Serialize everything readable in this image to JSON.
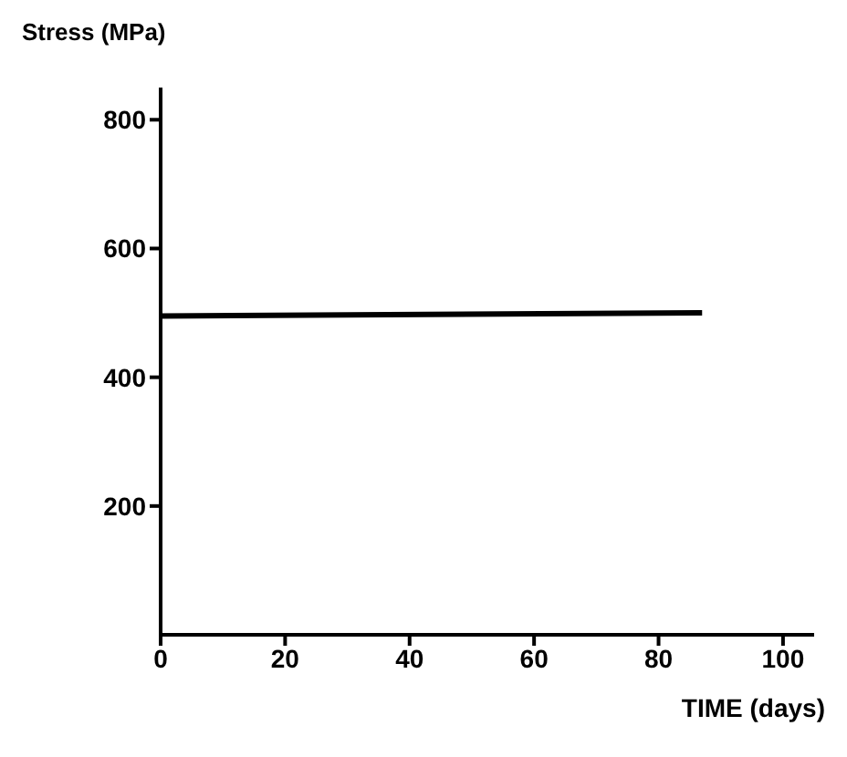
{
  "chart_data": {
    "type": "line",
    "ylabel": "Stress (MPa)",
    "xlabel": "TIME (days)",
    "x": [
      0,
      87
    ],
    "series": [
      {
        "color": "#000000",
        "values": [
          495,
          500
        ]
      }
    ],
    "xlim": [
      0,
      105
    ],
    "xticks": [
      0,
      20,
      40,
      60,
      80,
      100
    ],
    "ylim": [
      0,
      850
    ],
    "yticks": [
      200,
      400,
      600,
      800
    ],
    "grid": false,
    "legend": false,
    "marker": "none",
    "line_style": "solid"
  }
}
